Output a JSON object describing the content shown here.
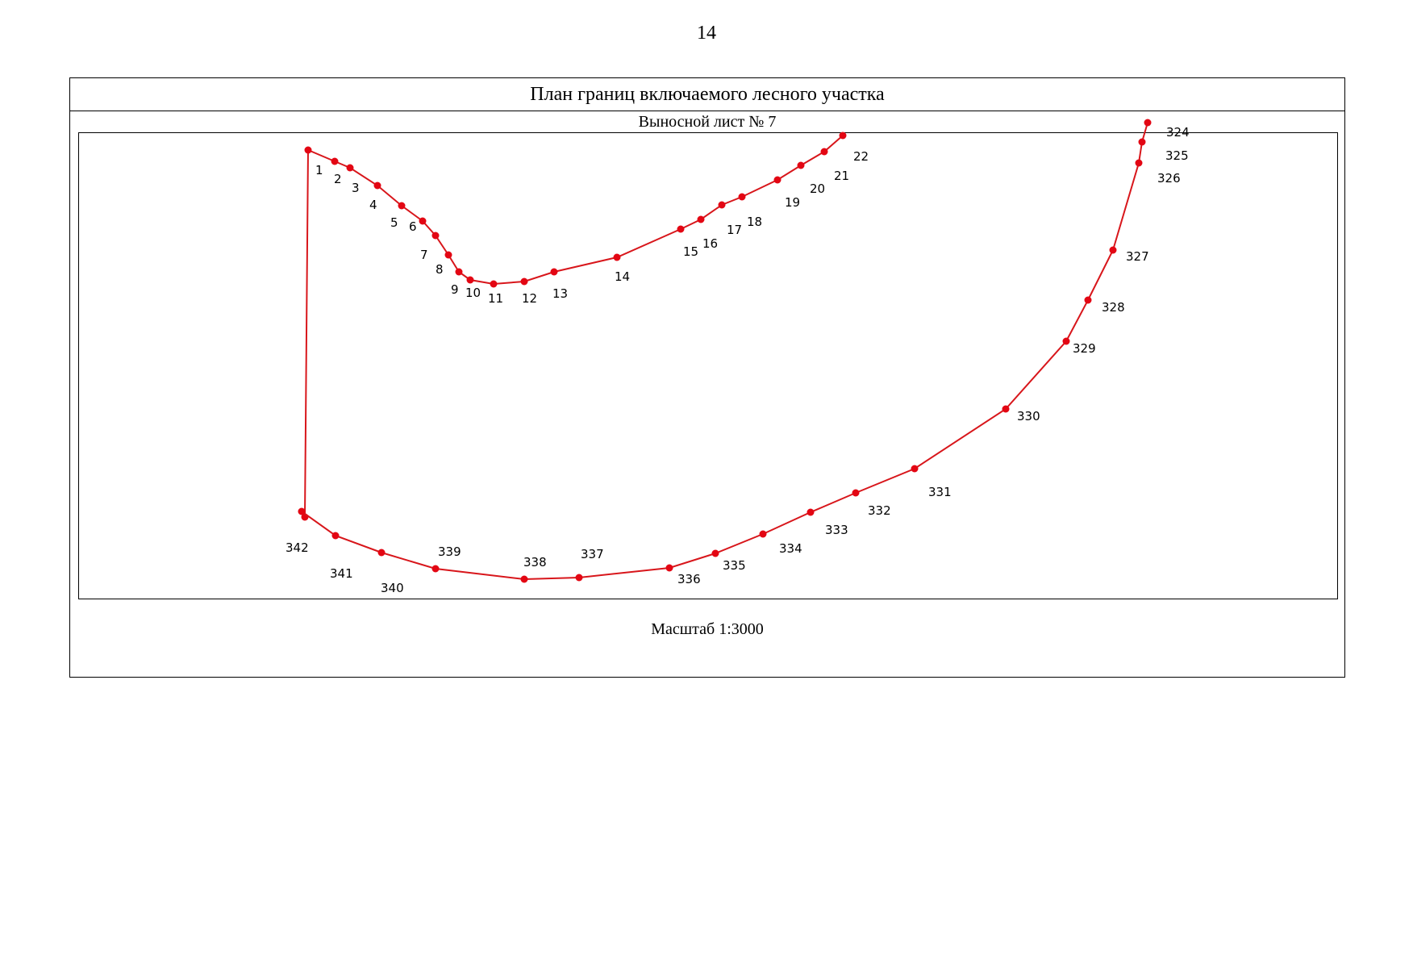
{
  "page_number": "14",
  "title": "План границ включаемого лесного участка",
  "sheet_label": "Выносной лист № 7",
  "scale_label": "Масштаб 1:3000",
  "colors": {
    "boundary": "#d8161b",
    "point": "#e30613"
  },
  "map": {
    "segments": [
      {
        "name": "north-boundary",
        "points": [
          {
            "label": "342"
          },
          {
            "label": "1"
          },
          {
            "label": "2"
          },
          {
            "label": "3"
          },
          {
            "label": "4"
          },
          {
            "label": "5"
          },
          {
            "label": "6"
          },
          {
            "label": "7"
          },
          {
            "label": "8"
          },
          {
            "label": "9"
          },
          {
            "label": "10"
          },
          {
            "label": "11"
          },
          {
            "label": "12"
          },
          {
            "label": "13"
          },
          {
            "label": "14"
          },
          {
            "label": "15"
          },
          {
            "label": "16"
          },
          {
            "label": "17"
          },
          {
            "label": "18"
          },
          {
            "label": "19"
          },
          {
            "label": "20"
          },
          {
            "label": "21"
          },
          {
            "label": "22"
          }
        ]
      },
      {
        "name": "south-boundary",
        "points": [
          {
            "label": "324"
          },
          {
            "label": "325"
          },
          {
            "label": "326"
          },
          {
            "label": "327"
          },
          {
            "label": "328"
          },
          {
            "label": "329"
          },
          {
            "label": "330"
          },
          {
            "label": "331"
          },
          {
            "label": "332"
          },
          {
            "label": "333"
          },
          {
            "label": "334"
          },
          {
            "label": "335"
          },
          {
            "label": "336"
          },
          {
            "label": "337"
          },
          {
            "label": "338"
          },
          {
            "label": "339"
          },
          {
            "label": "340"
          },
          {
            "label": "341"
          },
          {
            "label": "342"
          }
        ]
      }
    ]
  }
}
